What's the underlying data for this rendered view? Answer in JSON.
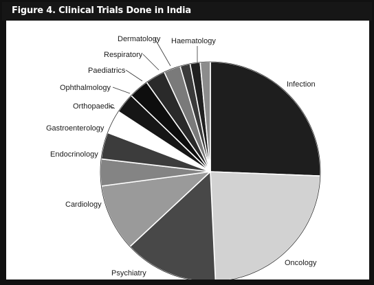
{
  "figure": {
    "title": "Figure 4.  Clinical Trials Done in India"
  },
  "chart_data": {
    "type": "pie",
    "title": "Figure 4.  Clinical Trials Done in India",
    "start_angle_deg": 0,
    "direction": "clockwise",
    "slices": [
      {
        "label": "Infection",
        "value": 26,
        "color": "#1e1e1e"
      },
      {
        "label": "Oncology",
        "value": 24,
        "color": "#d2d2d2"
      },
      {
        "label": "Psychiatry",
        "value": 14,
        "color": "#484848"
      },
      {
        "label": "Cardiology",
        "value": 10,
        "color": "#9a9a9a"
      },
      {
        "label": "Endocrinology",
        "value": 4,
        "color": "#848484"
      },
      {
        "label": "Gastroenterology",
        "value": 4,
        "color": "#3c3c3c"
      },
      {
        "label": "Orthopaedic",
        "value": 3.5,
        "color": "#ffffff"
      },
      {
        "label": "Ophthalmology",
        "value": 3,
        "color": "#161616"
      },
      {
        "label": "Paediatrics",
        "value": 3,
        "color": "#0e0e0e"
      },
      {
        "label": "Respiratory",
        "value": 3,
        "color": "#2a2a2a"
      },
      {
        "label": "Dermatology",
        "value": 2.5,
        "color": "#7a7a7a"
      },
      {
        "label": "",
        "value": 1.5,
        "color": "#3a3a3a"
      },
      {
        "label": "Haematology",
        "value": 1.5,
        "color": "#202020"
      },
      {
        "label": "",
        "value": 1.5,
        "color": "#8c8c8c"
      }
    ]
  }
}
